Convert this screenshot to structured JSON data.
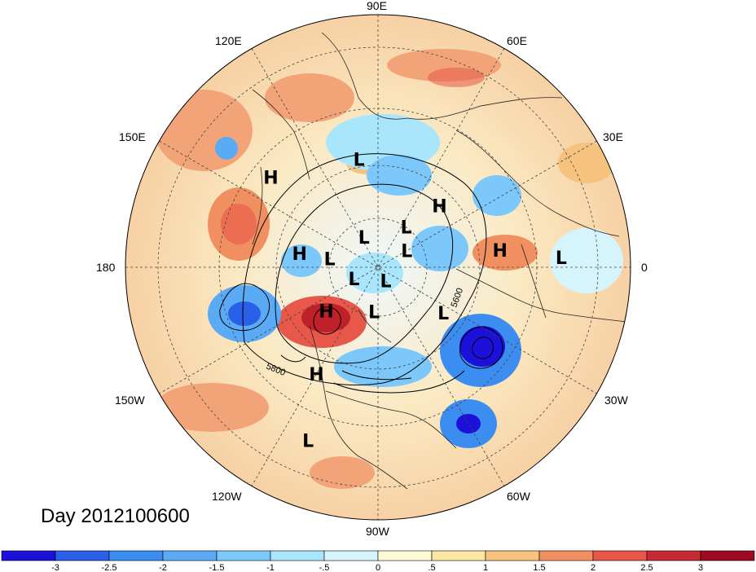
{
  "date_label": "Day 2012100600",
  "longitude_labels": [
    "90E",
    "60E",
    "30E",
    "0",
    "30W",
    "60W",
    "90W",
    "120W",
    "150W",
    "180",
    "150E",
    "120E"
  ],
  "contour_labels": [
    "5800",
    "5600"
  ],
  "pressure_centers": [
    {
      "label": "L",
      "lon": 100,
      "lat": 43
    },
    {
      "label": "H",
      "lon": 140,
      "lat": 32
    },
    {
      "label": "H",
      "lon": 45,
      "lat": 52
    },
    {
      "label": "L",
      "lon": 55,
      "lat": 68
    },
    {
      "label": "L",
      "lon": 115,
      "lat": 75
    },
    {
      "label": "H",
      "lon": 170,
      "lat": 55
    },
    {
      "label": "L",
      "lon": 170,
      "lat": 68
    },
    {
      "label": "L",
      "lon": 30,
      "lat": 75
    },
    {
      "label": "L",
      "lon": -155,
      "lat": 78
    },
    {
      "label": "L",
      "lon": -60,
      "lat": 83
    },
    {
      "label": "H",
      "lon": -140,
      "lat": 60
    },
    {
      "label": "L",
      "lon": -35,
      "lat": 55
    },
    {
      "label": "L",
      "lon": -95,
      "lat": 70
    },
    {
      "label": "H",
      "lon": 8,
      "lat": 38
    },
    {
      "label": "L",
      "lon": 3,
      "lat": 18
    },
    {
      "label": "H",
      "lon": -120,
      "lat": 38
    },
    {
      "label": "L",
      "lon": -112,
      "lat": 17
    }
  ],
  "colorbar": {
    "ticks": [
      "-3",
      "-2.5",
      "-2",
      "-1.5",
      "-1",
      "-.5",
      "0",
      ".5",
      "1",
      "1.5",
      "2",
      "2.5",
      "3"
    ],
    "colors": [
      "#1c10d9",
      "#2a5fe8",
      "#3c8df0",
      "#5aaaf5",
      "#7cc8fa",
      "#a9e6fc",
      "#d6f4fc",
      "#fdfbd5",
      "#fbe6a3",
      "#f7c27e",
      "#f09060",
      "#e8584a",
      "#c42a32",
      "#9e0a22"
    ]
  },
  "anomaly_colors": {
    "strong_negative": "#1a1ad6",
    "negative": "#4a9ae8",
    "weak_negative": "#bfe6fa",
    "weak_positive": "#fbe7b4",
    "positive": "#f2a478",
    "strong_positive": "#c02028"
  }
}
